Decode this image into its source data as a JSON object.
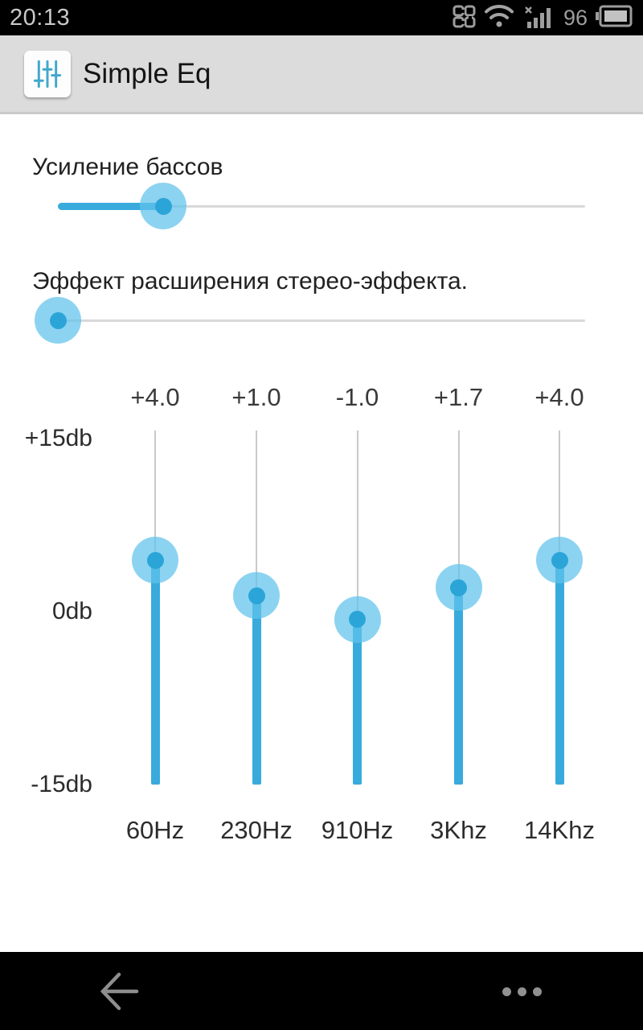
{
  "status_bar": {
    "time": "20:13",
    "battery_percent": "96"
  },
  "app_bar": {
    "title": "Simple Eq"
  },
  "controls": {
    "bass": {
      "label": "Усиление бассов",
      "value_percent": 20
    },
    "stereo": {
      "label": "Эффект расширения стерео-эффекта.",
      "value_percent": 0
    }
  },
  "equalizer": {
    "scale_labels": [
      "+15db",
      "0db",
      "-15db"
    ],
    "range_db": [
      -15,
      15
    ],
    "bands": [
      {
        "freq": "60Hz",
        "gain_label": "+4.0",
        "gain": 4.0
      },
      {
        "freq": "230Hz",
        "gain_label": "+1.0",
        "gain": 1.0
      },
      {
        "freq": "910Hz",
        "gain_label": "-1.0",
        "gain": -1.0
      },
      {
        "freq": "3Khz",
        "gain_label": "+1.7",
        "gain": 1.7
      },
      {
        "freq": "14Khz",
        "gain_label": "+4.0",
        "gain": 4.0
      }
    ]
  },
  "colors": {
    "accent": "#38abdc",
    "accent_dark": "#2ba5d8",
    "thumb_halo": "rgba(96,194,235,0.72)",
    "track_gray": "#c9c9c9",
    "app_bar_bg": "#dcdcdc",
    "status_icon_gray": "#9d9d9d"
  }
}
